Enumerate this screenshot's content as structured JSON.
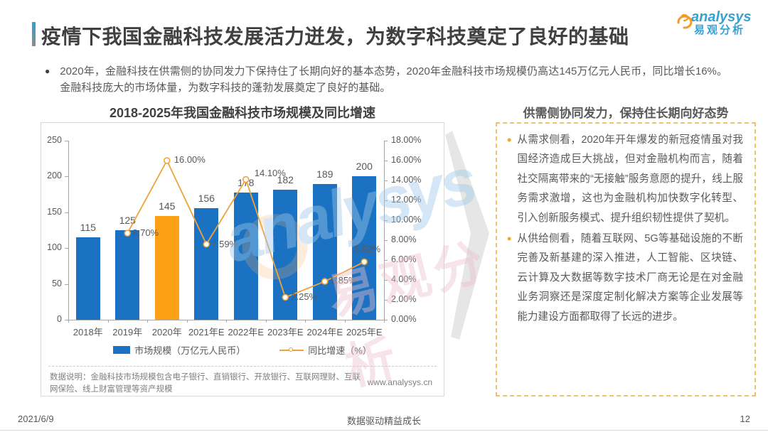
{
  "header": {
    "title": "疫情下我国金融科技发展活力迸发，为数字科技奠定了良好的基础",
    "logo": {
      "brand": "analysys",
      "brand_cn": "易观分析"
    }
  },
  "summary": {
    "bullet_glyph": "●",
    "text": "2020年，金融科技在供需侧的协同发力下保持住了长期向好的基本态势，2020年金融科技市场规模仍高达145万亿元人民币，同比增长16%。金融科技庞大的市场体量，为数字科技的蓬勃发展奠定了良好的基础。"
  },
  "chart_data": {
    "type": "bar+line",
    "title": "2018-2025年我国金融科技市场规模及同比增速",
    "categories": [
      "2018年",
      "2019年",
      "2020年",
      "2021年E",
      "2022年E",
      "2023年E",
      "2024年E",
      "2025年E"
    ],
    "series": [
      {
        "name": "市场规模（万亿元人民币）",
        "type": "bar",
        "values": [
          115,
          125,
          145,
          156,
          178,
          182,
          189,
          200
        ],
        "color": "#1c72c2",
        "highlight_index": 2,
        "highlight_color": "#fca016"
      },
      {
        "name": "同比增速（%）",
        "type": "line",
        "start_index": 1,
        "values": [
          8.7,
          16.0,
          7.59,
          14.1,
          2.25,
          3.85,
          5.82
        ],
        "labels": [
          "8.70%",
          "16.00%",
          "7.59%",
          "14.10%",
          "2.25%",
          "3.85%",
          "5.82%"
        ],
        "color": "#efa23c"
      }
    ],
    "left_axis": {
      "min": 0,
      "max": 250,
      "step": 50,
      "ticks": [
        "0",
        "50",
        "100",
        "150",
        "200",
        "250"
      ]
    },
    "right_axis": {
      "min": 0,
      "max": 18,
      "step": 2,
      "ticks": [
        "0.00%",
        "2.00%",
        "4.00%",
        "6.00%",
        "8.00%",
        "10.00%",
        "12.00%",
        "14.00%",
        "16.00%",
        "18.00%"
      ]
    },
    "legend_position": "bottom",
    "grid": false,
    "footnote": "数据说明：金融科技市场规模包含电子银行、直销银行、开放银行、互联网理财、互联网保险、线上财富管理等资产规模",
    "source_url": "www.analysys.cn"
  },
  "panel": {
    "title": "供需侧协同发力，保持住长期向好态势",
    "bullet_glyph": "•",
    "bullets": [
      "从需求侧看，2020年开年爆发的新冠疫情虽对我国经济造成巨大挑战，但对金融机构而言，随着社交隔离带来的“无接触”服务意愿的提升，线上服务需求激增，这也为金融机构加快数字化转型、引入创新服务模式、提升组织韧性提供了契机。",
      "从供给侧看，随着互联网、5G等基础设施的不断完善及新基建的深入推进，人工智能、区块链、云计算及大数据等数字技术厂商无论是在对金融业务洞察还是深度定制化解决方案等企业发展等能力建设方面都取得了长远的进步。"
    ]
  },
  "watermark": {
    "text_en": "analysys",
    "text_cn": "易观分析"
  },
  "footer": {
    "date": "2021/6/9",
    "center": "数据驱动精益成长",
    "page": "12"
  }
}
